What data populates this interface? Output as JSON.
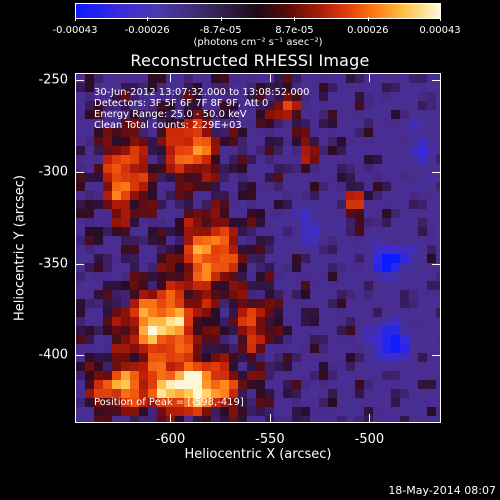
{
  "colorbar": {
    "tick_labels": [
      "-0.00043",
      "-0.00026",
      "-8.7e-05",
      "8.7e-05",
      "0.00026",
      "0.00043"
    ],
    "tick_values": [
      -0.00043,
      -0.00026,
      -8.7e-05,
      8.7e-05,
      0.00026,
      0.00043
    ],
    "range": [
      -0.00043,
      0.00043
    ],
    "units": "(photons cm⁻² s⁻¹ asec⁻²)"
  },
  "title": "Reconstructed RHESSI Image",
  "annotations": {
    "time_range": "30-Jun-2012 13:07:32.000 to 13:08:52.000",
    "detectors": "Detectors: 3F 5F 6F 7F 8F 9F, Att 0",
    "energy_range": "Energy Range: 25.0 - 50.0 keV",
    "clean_counts": "Clean     Total counts: 2.29E+03",
    "peak": "Position of Peak = [-598,-419]"
  },
  "axes": {
    "xlabel": "Heliocentric X (arcsec)",
    "ylabel": "Heliocentric Y (arcsec)",
    "x_ticks": [
      -600,
      -550,
      -500
    ],
    "x_tick_labels": [
      "-600",
      "-550",
      "-500"
    ],
    "y_ticks": [
      -250,
      -300,
      -350,
      -400
    ],
    "y_tick_labels": [
      "-250",
      "-300",
      "-350",
      "-400"
    ],
    "xlim": [
      -648,
      -464
    ],
    "ylim": [
      -437,
      -246
    ]
  },
  "footer": {
    "date": "18-May-2014 08:07"
  },
  "chart_data": {
    "type": "heatmap",
    "title": "Reconstructed RHESSI Image",
    "xlabel": "Heliocentric X (arcsec)",
    "ylabel": "Heliocentric Y (arcsec)",
    "xlim": [
      -648,
      -464
    ],
    "ylim": [
      -437,
      -246
    ],
    "color_range": [
      -0.00043,
      0.00043
    ],
    "peak_position": [
      -598,
      -419
    ],
    "colors": {
      "background": "#000000",
      "low": "#0a1cff",
      "mid": "#4a2c8e",
      "high": "#fff8d8"
    }
  }
}
